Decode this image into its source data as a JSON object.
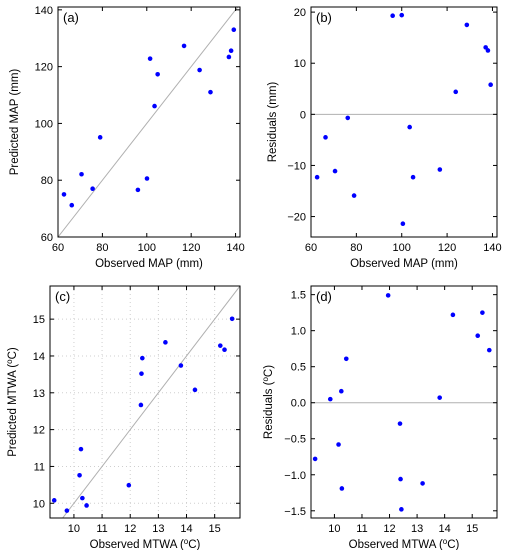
{
  "colors": {
    "points": "#0000ff",
    "reference_line": "#b0b0b0"
  },
  "chart_data": [
    {
      "panel_label": "(a)",
      "type": "scatter",
      "xlabel": "Observed MAP (mm)",
      "ylabel": "Predicted MAP (mm)",
      "xlim": [
        60,
        142
      ],
      "ylim": [
        60,
        141
      ],
      "xticks": [
        "60",
        "80",
        "100",
        "120",
        "140"
      ],
      "yticks": [
        "60",
        "80",
        "100",
        "120",
        "140"
      ],
      "xtick_values": [
        60,
        80,
        100,
        120,
        140
      ],
      "ytick_values": [
        60,
        80,
        100,
        120,
        140
      ],
      "reference": "identity",
      "grid": false,
      "points": [
        {
          "x": 62.7,
          "y": 75.0
        },
        {
          "x": 66.2,
          "y": 71.2
        },
        {
          "x": 70.6,
          "y": 82.1
        },
        {
          "x": 75.6,
          "y": 77.0
        },
        {
          "x": 79.0,
          "y": 95.1
        },
        {
          "x": 96.0,
          "y": 76.6
        },
        {
          "x": 100.1,
          "y": 80.6
        },
        {
          "x": 101.5,
          "y": 122.8
        },
        {
          "x": 103.5,
          "y": 106.1
        },
        {
          "x": 104.9,
          "y": 117.3
        },
        {
          "x": 116.8,
          "y": 127.3
        },
        {
          "x": 123.8,
          "y": 118.8
        },
        {
          "x": 128.7,
          "y": 111.0
        },
        {
          "x": 137.0,
          "y": 123.4
        },
        {
          "x": 138.0,
          "y": 125.6
        },
        {
          "x": 139.2,
          "y": 133.0
        }
      ]
    },
    {
      "panel_label": "(b)",
      "type": "scatter",
      "xlabel": "Observed MAP (mm)",
      "ylabel": "Residuals (mm)",
      "xlim": [
        60,
        142
      ],
      "ylim": [
        -24,
        21
      ],
      "xticks": [
        "60",
        "80",
        "100",
        "120",
        "140"
      ],
      "yticks": [
        "20",
        "10",
        "0",
        "−10",
        "−20"
      ],
      "xtick_values": [
        60,
        80,
        100,
        120,
        140
      ],
      "ytick_values": [
        20,
        10,
        0,
        -10,
        -20
      ],
      "reference": "zero",
      "grid": false,
      "points": [
        {
          "x": 62.7,
          "y": -12.3
        },
        {
          "x": 66.4,
          "y": -4.5
        },
        {
          "x": 70.6,
          "y": -11.1
        },
        {
          "x": 76.2,
          "y": -0.7
        },
        {
          "x": 79.0,
          "y": -15.9
        },
        {
          "x": 96.0,
          "y": 19.3
        },
        {
          "x": 100.0,
          "y": 19.4
        },
        {
          "x": 100.5,
          "y": -21.4
        },
        {
          "x": 103.5,
          "y": -2.5
        },
        {
          "x": 105.0,
          "y": -12.3
        },
        {
          "x": 116.8,
          "y": -10.8
        },
        {
          "x": 123.8,
          "y": 4.4
        },
        {
          "x": 128.7,
          "y": 17.5
        },
        {
          "x": 137.0,
          "y": 13.1
        },
        {
          "x": 138.0,
          "y": 12.5
        },
        {
          "x": 139.2,
          "y": 5.8
        }
      ]
    },
    {
      "panel_label": "(c)",
      "type": "scatter",
      "xlabel": "Observed MTWA (°C)",
      "ylabel": "Predicted MTWA (°C)",
      "xlim": [
        9.15,
        15.9
      ],
      "ylim": [
        9.6,
        15.9
      ],
      "xticks": [
        "10",
        "11",
        "12",
        "13",
        "14",
        "15"
      ],
      "yticks": [
        "10",
        "11",
        "12",
        "13",
        "14",
        "15"
      ],
      "xtick_values": [
        10,
        11,
        12,
        13,
        14,
        15
      ],
      "ytick_values": [
        10,
        11,
        12,
        13,
        14,
        15
      ],
      "reference": "identity",
      "grid": true,
      "points": [
        {
          "x": 9.3,
          "y": 10.08
        },
        {
          "x": 9.75,
          "y": 9.8
        },
        {
          "x": 10.2,
          "y": 10.76
        },
        {
          "x": 10.25,
          "y": 11.47
        },
        {
          "x": 10.3,
          "y": 10.14
        },
        {
          "x": 10.45,
          "y": 9.94
        },
        {
          "x": 11.95,
          "y": 10.49
        },
        {
          "x": 12.38,
          "y": 12.67
        },
        {
          "x": 12.4,
          "y": 13.52
        },
        {
          "x": 12.43,
          "y": 13.94
        },
        {
          "x": 13.25,
          "y": 14.37
        },
        {
          "x": 13.8,
          "y": 13.74
        },
        {
          "x": 14.3,
          "y": 13.08
        },
        {
          "x": 15.2,
          "y": 14.28
        },
        {
          "x": 15.35,
          "y": 14.17
        },
        {
          "x": 15.62,
          "y": 15.01
        }
      ]
    },
    {
      "panel_label": "(d)",
      "type": "scatter",
      "xlabel": "Observed MTWA (°C)",
      "ylabel": "Residuals (°C)",
      "xlim": [
        9.15,
        15.9
      ],
      "ylim": [
        -1.6,
        1.62
      ],
      "xticks": [
        "10",
        "11",
        "12",
        "13",
        "14",
        "15"
      ],
      "yticks": [
        "1.5",
        "1.0",
        "0.5",
        "0.0",
        "−0.5",
        "−1.0",
        "−1.5"
      ],
      "xtick_values": [
        10,
        11,
        12,
        13,
        14,
        15
      ],
      "ytick_values": [
        1.5,
        1.0,
        0.5,
        0.0,
        -0.5,
        -1.0,
        -1.5
      ],
      "reference": "zero",
      "grid": false,
      "points": [
        {
          "x": 9.3,
          "y": -0.78
        },
        {
          "x": 9.85,
          "y": 0.05
        },
        {
          "x": 10.15,
          "y": -0.58
        },
        {
          "x": 10.25,
          "y": 0.16
        },
        {
          "x": 10.27,
          "y": -1.19
        },
        {
          "x": 10.43,
          "y": 0.61
        },
        {
          "x": 11.95,
          "y": 1.49
        },
        {
          "x": 12.38,
          "y": -0.29
        },
        {
          "x": 12.4,
          "y": -1.06
        },
        {
          "x": 12.43,
          "y": -1.48
        },
        {
          "x": 13.2,
          "y": -1.12
        },
        {
          "x": 13.82,
          "y": 0.07
        },
        {
          "x": 14.3,
          "y": 1.22
        },
        {
          "x": 15.2,
          "y": 0.93
        },
        {
          "x": 15.37,
          "y": 1.25
        },
        {
          "x": 15.62,
          "y": 0.73
        }
      ]
    }
  ]
}
